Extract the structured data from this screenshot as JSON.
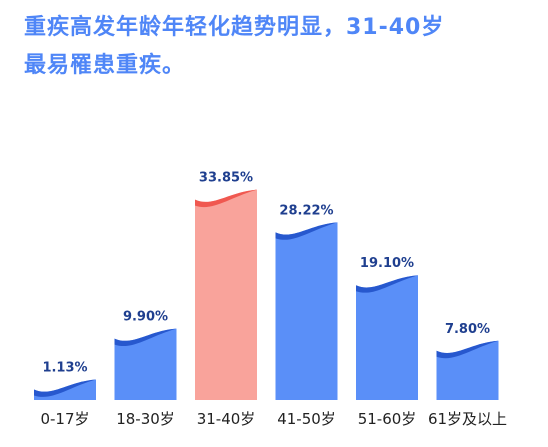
{
  "chart_data": {
    "type": "bar",
    "title_lines": [
      "重疾高发年龄年轻化趋势明显，31-40岁",
      "最易罹患重疾。"
    ],
    "categories": [
      "0-17岁",
      "18-30岁",
      "31-40岁",
      "41-50岁",
      "51-60岁",
      "61岁及以上"
    ],
    "values": [
      1.13,
      9.9,
      33.85,
      28.22,
      19.1,
      7.8
    ],
    "value_labels": [
      "1.13%",
      "9.90%",
      "33.85%",
      "28.22%",
      "19.10%",
      "7.80%"
    ],
    "colors": [
      "#5a8ff8",
      "#5a8ff8",
      "#f9a39b",
      "#5a8ff8",
      "#5a8ff8",
      "#5a8ff8"
    ],
    "crest_colors": [
      "#1f4fc7",
      "#1f4fc7",
      "#ee4b43",
      "#1f4fc7",
      "#1f4fc7",
      "#1f4fc7"
    ]
  }
}
